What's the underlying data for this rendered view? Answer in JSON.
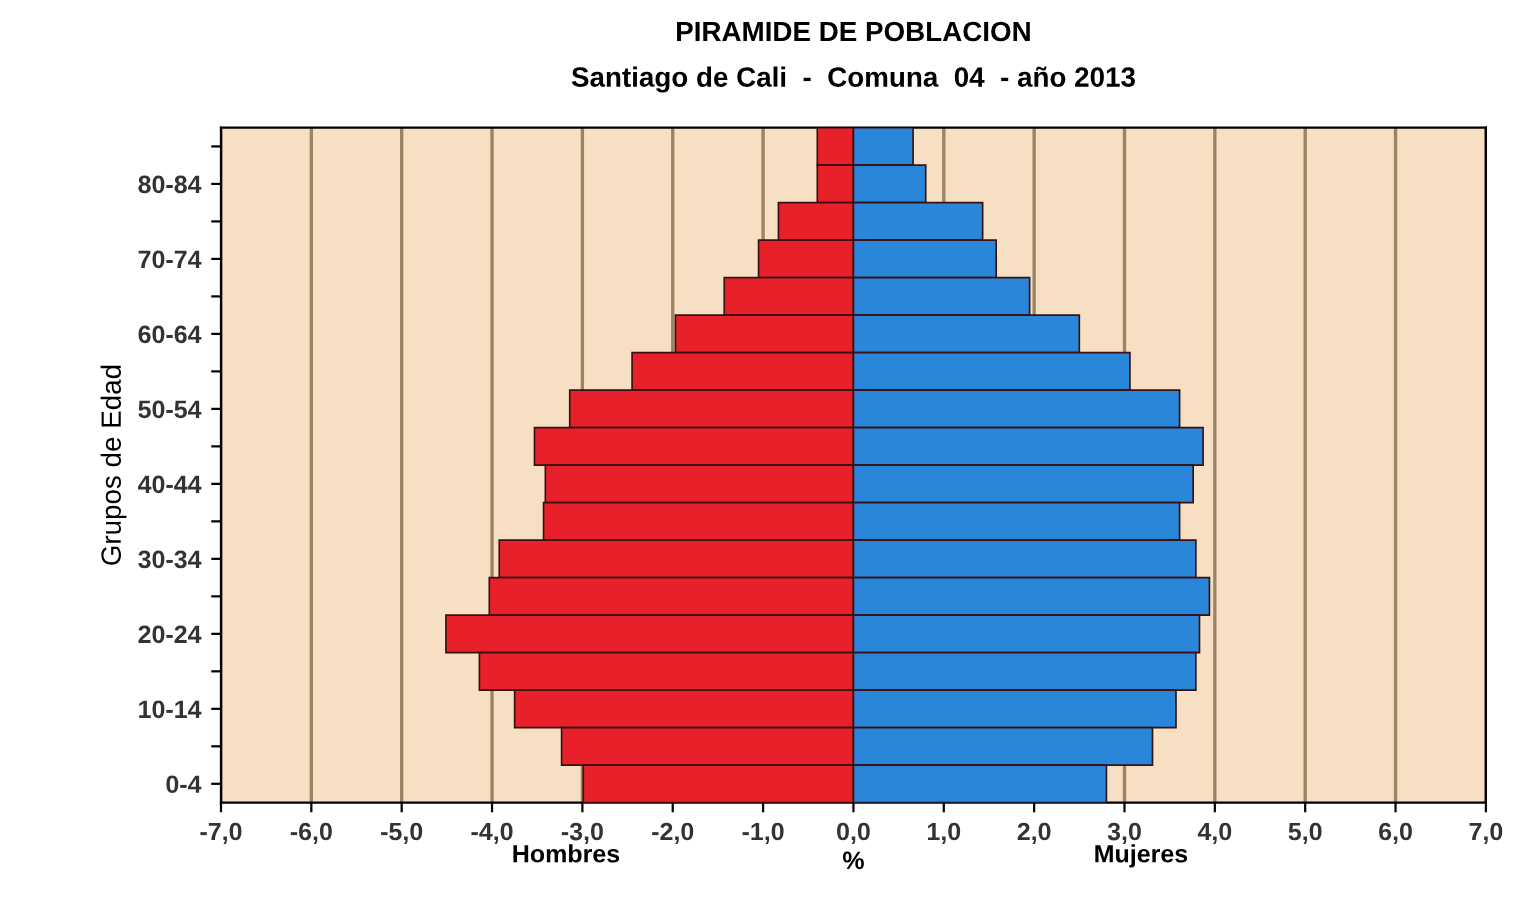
{
  "chart_data": {
    "type": "bar",
    "orientation": "horizontal",
    "stacked": true,
    "title": "PIRAMIDE DE POBLACION",
    "subtitle": "Santiago de Cali  -  Comuna  04  - año 2013",
    "xlabel": "%",
    "ylabel": "Grupos de Edad",
    "categories": [
      null,
      "80-84",
      null,
      "70-74",
      null,
      "60-64",
      null,
      "50-54",
      null,
      "40-44",
      null,
      "30-34",
      null,
      "20-24",
      null,
      "10-14",
      null,
      "0-4"
    ],
    "series": [
      {
        "name": "Hombres",
        "color": "#e8202a",
        "values": [
          -0.4,
          -0.4,
          -0.83,
          -1.05,
          -1.43,
          -1.97,
          -2.45,
          -3.14,
          -3.53,
          -3.41,
          -3.43,
          -3.92,
          -4.03,
          -4.51,
          -4.14,
          -3.75,
          -3.23,
          -2.99
        ]
      },
      {
        "name": "Mujeres",
        "color": "#2a86d8",
        "values": [
          0.66,
          0.8,
          1.43,
          1.58,
          1.95,
          2.5,
          3.06,
          3.61,
          3.87,
          3.76,
          3.61,
          3.79,
          3.94,
          3.83,
          3.79,
          3.57,
          3.31,
          2.8
        ]
      }
    ],
    "xlim": [
      -7,
      7
    ],
    "xticks": [
      {
        "value": -7,
        "label": "-7,0"
      },
      {
        "value": -6,
        "label": "-6,0"
      },
      {
        "value": -5,
        "label": "-5,0"
      },
      {
        "value": -4,
        "label": "-4,0"
      },
      {
        "value": -3,
        "label": "-3,0"
      },
      {
        "value": -2,
        "label": "-2,0"
      },
      {
        "value": -1,
        "label": "-1,0"
      },
      {
        "value": 0,
        "label": "0,0"
      },
      {
        "value": 1,
        "label": "1,0"
      },
      {
        "value": 2,
        "label": "2,0"
      },
      {
        "value": 3,
        "label": "3,0"
      },
      {
        "value": 4,
        "label": "4,0"
      },
      {
        "value": 5,
        "label": "5,0"
      },
      {
        "value": 6,
        "label": "6,0"
      },
      {
        "value": 7,
        "label": "7,0"
      }
    ],
    "grid": "x",
    "legend": false
  }
}
